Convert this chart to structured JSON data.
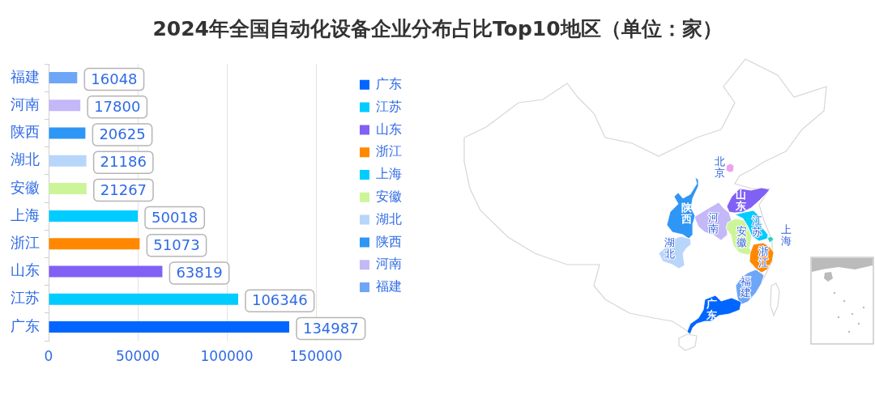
{
  "chart_data": [
    {
      "type": "bar",
      "title": "2024年全国自动化设备企业分布占比Top10地区（单位：家）",
      "orientation": "horizontal",
      "categories": [
        "福建",
        "河南",
        "陕西",
        "湖北",
        "安徽",
        "上海",
        "浙江",
        "山东",
        "江苏",
        "广东"
      ],
      "series": [
        {
          "name": "广东",
          "color": "#0066ff",
          "values": [
            null,
            null,
            null,
            null,
            null,
            null,
            null,
            null,
            null,
            134987
          ]
        },
        {
          "name": "江苏",
          "color": "#00ccff",
          "values": [
            null,
            null,
            null,
            null,
            null,
            null,
            null,
            null,
            106346,
            null
          ]
        },
        {
          "name": "山东",
          "color": "#8060f5",
          "values": [
            null,
            null,
            null,
            null,
            null,
            null,
            null,
            63819,
            null,
            null
          ]
        },
        {
          "name": "浙江",
          "color": "#ff8800",
          "values": [
            null,
            null,
            null,
            null,
            null,
            null,
            51073,
            null,
            null,
            null
          ]
        },
        {
          "name": "上海",
          "color": "#00ccff",
          "values": [
            null,
            null,
            null,
            null,
            null,
            50018,
            null,
            null,
            null,
            null
          ]
        },
        {
          "name": "安徽",
          "color": "#ccf59a",
          "values": [
            null,
            null,
            null,
            null,
            21267,
            null,
            null,
            null,
            null,
            null
          ]
        },
        {
          "name": "湖北",
          "color": "#b8d6fa",
          "values": [
            null,
            null,
            null,
            21186,
            null,
            null,
            null,
            null,
            null,
            null
          ]
        },
        {
          "name": "陕西",
          "color": "#2e96f5",
          "values": [
            null,
            null,
            20625,
            null,
            null,
            null,
            null,
            null,
            null,
            null
          ]
        },
        {
          "name": "河南",
          "color": "#c4b8f8",
          "values": [
            null,
            17800,
            null,
            null,
            null,
            null,
            null,
            null,
            null,
            null
          ]
        },
        {
          "name": "福建",
          "color": "#6ea6f7",
          "values": [
            16048,
            null,
            null,
            null,
            null,
            null,
            null,
            null,
            null,
            null
          ]
        }
      ],
      "xlim": [
        0,
        150000
      ],
      "xticks": [
        0,
        50000,
        100000,
        150000
      ],
      "grid": "x",
      "data_labels": true,
      "legend": "right"
    },
    {
      "type": "other",
      "categories": [
        "北京",
        "陕西",
        "河南",
        "山东",
        "江苏",
        "上海",
        "安徽",
        "浙江",
        "湖北",
        "福建",
        "广东"
      ],
      "colors": [
        "#f0a0f0",
        "#2e96f5",
        "#c4b8f8",
        "#8060f5",
        "#00ccff",
        "#22d3c5",
        "#ccf59a",
        "#ff8800",
        "#b8d6fa",
        "#6ea6f7",
        "#0066ff"
      ]
    }
  ]
}
